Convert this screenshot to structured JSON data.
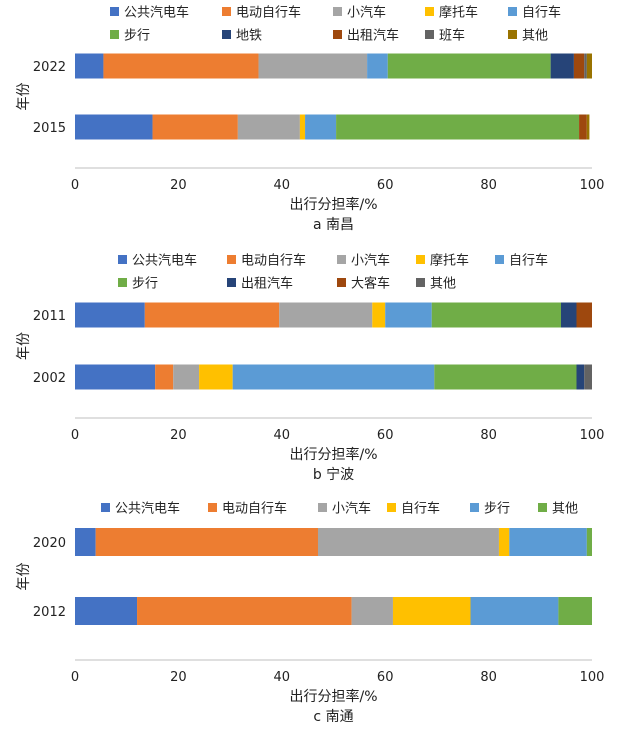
{
  "chart_data": [
    {
      "type": "bar",
      "orientation": "horizontal",
      "stacked": true,
      "caption": "a 南昌",
      "xlabel": "出行分担率/%",
      "ylabel": "年份",
      "xlim": [
        0,
        100
      ],
      "xticks": [
        "0",
        "20",
        "40",
        "60",
        "80",
        "100"
      ],
      "categories": [
        "2022",
        "2015"
      ],
      "grid": false,
      "legend": "top",
      "series": [
        {
          "name": "公共汽电车",
          "color": "#4472C4",
          "values": [
            5.5,
            15
          ]
        },
        {
          "name": "电动自行车",
          "color": "#ED7D31",
          "values": [
            30,
            16.5
          ]
        },
        {
          "name": "小汽车",
          "color": "#A5A5A5",
          "values": [
            21,
            12
          ]
        },
        {
          "name": "摩托车",
          "color": "#FFC000",
          "values": [
            0,
            1
          ]
        },
        {
          "name": "自行车",
          "color": "#5B9BD5",
          "values": [
            4,
            6
          ]
        },
        {
          "name": "步行",
          "color": "#70AD47",
          "values": [
            31.5,
            47
          ]
        },
        {
          "name": "地铁",
          "color": "#264478",
          "values": [
            4.5,
            0
          ]
        },
        {
          "name": "出租汽车",
          "color": "#9E480E",
          "values": [
            2,
            1.5
          ]
        },
        {
          "name": "班车",
          "color": "#636363",
          "values": [
            0.5,
            0
          ]
        },
        {
          "name": "其他",
          "color": "#997300",
          "values": [
            1,
            0.5
          ]
        }
      ]
    },
    {
      "type": "bar",
      "orientation": "horizontal",
      "stacked": true,
      "caption": "b 宁波",
      "xlabel": "出行分担率/%",
      "ylabel": "年份",
      "xlim": [
        0,
        100
      ],
      "xticks": [
        "0",
        "20",
        "40",
        "60",
        "80",
        "100"
      ],
      "categories": [
        "2011",
        "2002"
      ],
      "grid": false,
      "legend": "top",
      "series": [
        {
          "name": "公共汽电车",
          "color": "#4472C4",
          "values": [
            13.5,
            15.5
          ]
        },
        {
          "name": "电动自行车",
          "color": "#ED7D31",
          "values": [
            26,
            3.5
          ]
        },
        {
          "name": "小汽车",
          "color": "#A5A5A5",
          "values": [
            18,
            5
          ]
        },
        {
          "name": "摩托车",
          "color": "#FFC000",
          "values": [
            2.5,
            6.5
          ]
        },
        {
          "name": "自行车",
          "color": "#5B9BD5",
          "values": [
            9,
            39
          ]
        },
        {
          "name": "步行",
          "color": "#70AD47",
          "values": [
            25,
            27.5
          ]
        },
        {
          "name": "出租汽车",
          "color": "#264478",
          "values": [
            3,
            1.5
          ]
        },
        {
          "name": "大客车",
          "color": "#9E480E",
          "values": [
            3,
            0
          ]
        },
        {
          "name": "其他",
          "color": "#636363",
          "values": [
            0,
            1.5
          ]
        }
      ]
    },
    {
      "type": "bar",
      "orientation": "horizontal",
      "stacked": true,
      "caption": "c 南通",
      "xlabel": "出行分担率/%",
      "ylabel": "年份",
      "xlim": [
        0,
        100
      ],
      "xticks": [
        "0",
        "20",
        "40",
        "60",
        "80",
        "100"
      ],
      "categories": [
        "2020",
        "2012"
      ],
      "grid": false,
      "legend": "top",
      "series": [
        {
          "name": "公共汽电车",
          "color": "#4472C4",
          "values": [
            4,
            12
          ]
        },
        {
          "name": "电动自行车",
          "color": "#ED7D31",
          "values": [
            43,
            41.5
          ]
        },
        {
          "name": "小汽车",
          "color": "#A5A5A5",
          "values": [
            35,
            8
          ]
        },
        {
          "name": "自行车",
          "color": "#FFC000",
          "values": [
            2,
            15
          ]
        },
        {
          "name": "步行",
          "color": "#5B9BD5",
          "values": [
            15,
            17
          ]
        },
        {
          "name": "其他",
          "color": "#70AD47",
          "values": [
            1,
            6.5
          ]
        }
      ]
    }
  ]
}
